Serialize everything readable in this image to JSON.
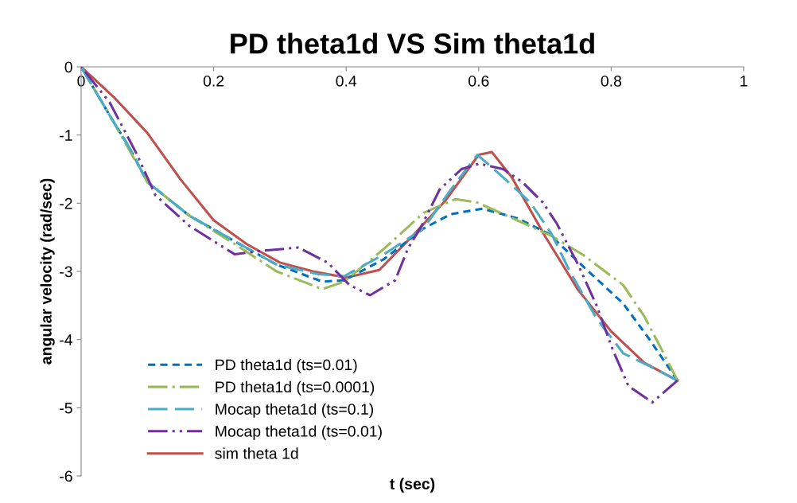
{
  "chart_data": {
    "type": "line",
    "title": "PD theta1d VS Sim theta1d",
    "xlabel": "t (sec)",
    "ylabel": "angular velocity (rad/sec)",
    "xlim": [
      0,
      1
    ],
    "xticks": [
      0,
      0.2,
      0.4,
      0.6,
      0.8,
      1
    ],
    "ylim": [
      -6,
      0
    ],
    "yticks": [
      -6,
      -5,
      -4,
      -3,
      -2,
      -1,
      0
    ],
    "grid": false,
    "legend": "bottom left",
    "marker": "none",
    "series": [
      {
        "name": "PD theta1d (ts=0.01)",
        "color": "#0070c0",
        "line_style": "dashed",
        "x": [
          0,
          0.043,
          0.072,
          0.1,
          0.163,
          0.232,
          0.295,
          0.364,
          0.397,
          0.457,
          0.517,
          0.558,
          0.606,
          0.658,
          0.706,
          0.758,
          0.818,
          0.858,
          0.9
        ],
        "values": [
          0,
          -0.71,
          -1.17,
          -1.69,
          -2.18,
          -2.56,
          -2.9,
          -3.15,
          -3.13,
          -2.82,
          -2.37,
          -2.16,
          -2.08,
          -2.22,
          -2.45,
          -2.93,
          -3.47,
          -4.0,
          -4.6
        ]
      },
      {
        "name": "PD theta1d (ts=0.0001)",
        "color": "#9bbb59",
        "line_style": "dashdot",
        "x": [
          0,
          0.043,
          0.1,
          0.163,
          0.232,
          0.295,
          0.364,
          0.397,
          0.457,
          0.517,
          0.565,
          0.598,
          0.658,
          0.71,
          0.758,
          0.818,
          0.85,
          0.878,
          0.9
        ],
        "values": [
          0,
          -0.71,
          -1.69,
          -2.18,
          -2.6,
          -3.0,
          -3.26,
          -3.15,
          -2.67,
          -2.14,
          -1.94,
          -1.99,
          -2.25,
          -2.48,
          -2.76,
          -3.2,
          -3.66,
          -4.18,
          -4.6
        ]
      },
      {
        "name": "Mocap theta1d (ts=0.1)",
        "color": "#4bacc6",
        "line_style": "longdash",
        "x": [
          0,
          0.043,
          0.072,
          0.1,
          0.163,
          0.232,
          0.295,
          0.358,
          0.397,
          0.457,
          0.517,
          0.558,
          0.598,
          0.637,
          0.678,
          0.71,
          0.738,
          0.778,
          0.818,
          0.858,
          0.9
        ],
        "values": [
          0,
          -0.71,
          -1.17,
          -1.69,
          -2.18,
          -2.56,
          -2.9,
          -3.04,
          -3.07,
          -2.75,
          -2.37,
          -1.8,
          -1.29,
          -1.62,
          -1.99,
          -2.45,
          -3.01,
          -3.69,
          -4.2,
          -4.39,
          -4.6
        ]
      },
      {
        "name": "Mocap theta1d (ts=0.01)",
        "color": "#7030a0",
        "line_style": "dashdotdot",
        "x": [
          0,
          0.043,
          0.084,
          0.112,
          0.163,
          0.232,
          0.271,
          0.328,
          0.372,
          0.405,
          0.436,
          0.474,
          0.493,
          0.514,
          0.541,
          0.574,
          0.601,
          0.637,
          0.666,
          0.697,
          0.718,
          0.75,
          0.778,
          0.802,
          0.826,
          0.862,
          0.9
        ],
        "values": [
          0,
          -0.52,
          -1.28,
          -1.88,
          -2.33,
          -2.75,
          -2.7,
          -2.65,
          -2.87,
          -3.2,
          -3.35,
          -3.13,
          -2.67,
          -2.33,
          -1.8,
          -1.5,
          -1.42,
          -1.5,
          -1.69,
          -1.99,
          -2.3,
          -2.9,
          -3.5,
          -4.14,
          -4.68,
          -4.92,
          -4.6
        ]
      },
      {
        "name": "sim theta 1d",
        "color": "#c0504d",
        "line_style": "solid",
        "x": [
          0,
          0.05,
          0.1,
          0.15,
          0.2,
          0.25,
          0.3,
          0.35,
          0.4,
          0.45,
          0.5,
          0.55,
          0.6,
          0.62,
          0.65,
          0.7,
          0.75,
          0.8,
          0.85,
          0.9
        ],
        "values": [
          0,
          -0.45,
          -0.97,
          -1.65,
          -2.25,
          -2.6,
          -2.87,
          -3.0,
          -3.09,
          -2.98,
          -2.48,
          -1.96,
          -1.29,
          -1.25,
          -1.62,
          -2.48,
          -3.27,
          -3.88,
          -4.34,
          -4.6
        ]
      }
    ]
  }
}
